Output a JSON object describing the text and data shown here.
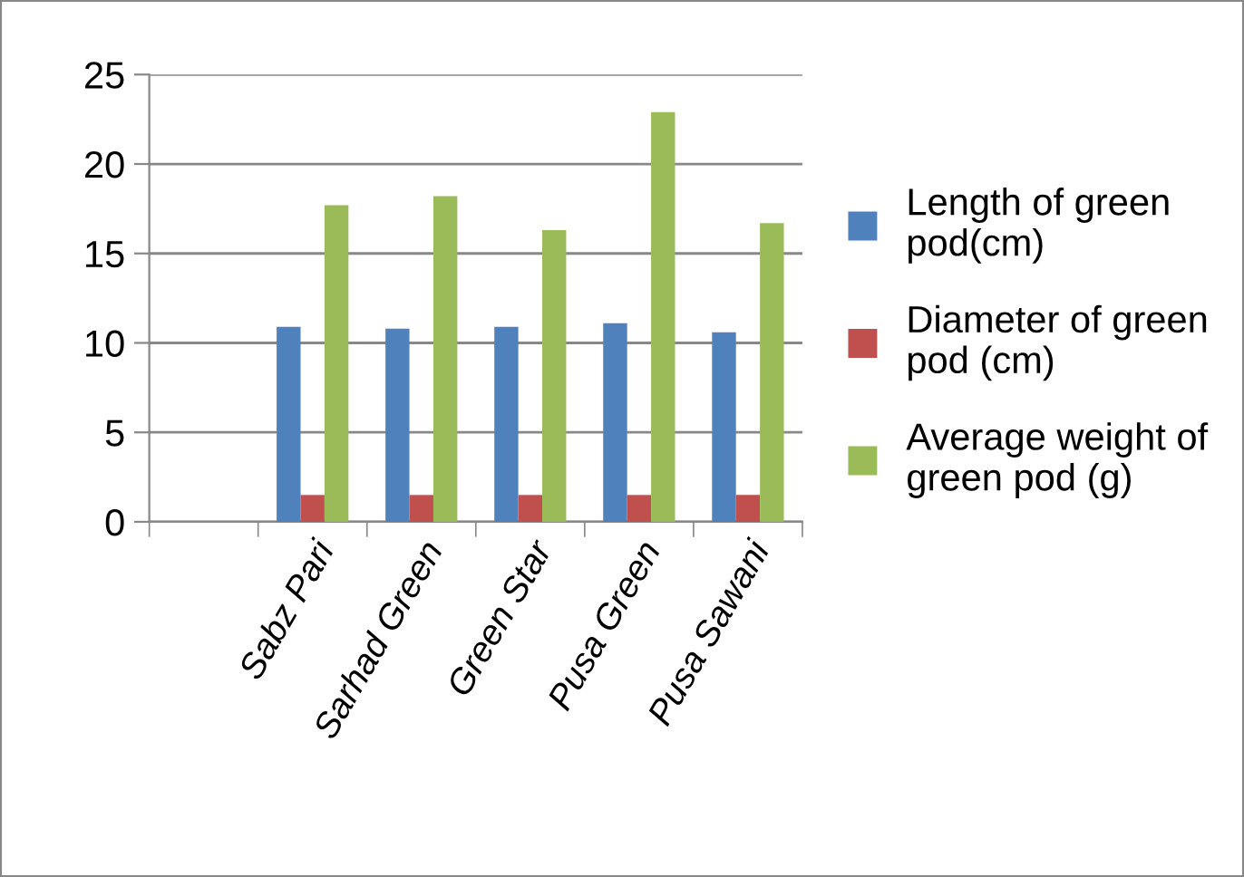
{
  "chart_data": {
    "type": "bar",
    "categories": [
      null,
      "Sabz Pari",
      "Sarhad Green",
      "Green Star",
      "Pusa Green",
      "Pusa Sawani"
    ],
    "series": [
      {
        "name": "Length of green\npod(cm)",
        "color": "#4f81bd",
        "values": [
          null,
          10.9,
          10.8,
          10.9,
          11.1,
          10.6
        ]
      },
      {
        "name": "Diameter of green\npod (cm)",
        "color": "#c0504d",
        "values": [
          null,
          1.5,
          1.5,
          1.5,
          1.5,
          1.5
        ]
      },
      {
        "name": "Average weight of\ngreen pod (g)",
        "color": "#9bbb59",
        "values": [
          null,
          17.7,
          18.2,
          16.3,
          22.9,
          16.7
        ]
      }
    ],
    "ylim": [
      0,
      25
    ],
    "yticks": [
      0,
      5,
      10,
      15,
      20,
      25
    ],
    "grid": "y",
    "legend": "right"
  }
}
